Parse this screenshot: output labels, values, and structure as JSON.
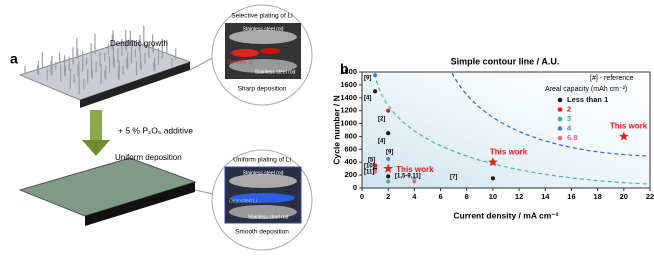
{
  "panel_a": {
    "label": "a",
    "top": {
      "caption": "Dendritic growth",
      "zoom_title": "Selective plating of Li",
      "rod_top": "Stainless steel rod",
      "li_label": "Dendritic Li",
      "rod_bottom": "Stainless steel rod",
      "zoom_caption": "Sharp deposition"
    },
    "additive": "+ 5 % P₂O₅ additive",
    "bottom": {
      "caption": "Uniform deposition",
      "zoom_title": "Uniform plating of Li",
      "rod_top": "Stainless steel rod",
      "li_label": "Deposited Li",
      "rod_bottom": "Stainless steel rod",
      "zoom_caption": "Smooth deposition"
    }
  },
  "chart_data": {
    "type": "scatter",
    "panel_label": "b",
    "title": "Simple contour line / A.U.",
    "x_label": "Current density / mA cm⁻²",
    "y_label": "Cycle number / N",
    "xlim": [
      0,
      22
    ],
    "xticks": [
      0,
      2,
      4,
      6,
      8,
      10,
      12,
      14,
      16,
      18,
      20,
      22
    ],
    "ylim": [
      0,
      1800
    ],
    "yticks": [
      0,
      200,
      400,
      600,
      800,
      1000,
      1200,
      1400,
      1600,
      1800
    ],
    "legend_title": "[#] - reference",
    "legend_subtitle": "Areal capacity (mAh cm⁻²)",
    "series": [
      {
        "name": "Less than 1",
        "color": "#1a1a1a",
        "x": [
          1,
          2,
          1,
          10,
          2
        ],
        "values": [
          1500,
          850,
          300,
          150,
          180
        ]
      },
      {
        "name": "2",
        "color": "#e02020",
        "x": [
          2,
          1
        ],
        "values": [
          1200,
          350
        ]
      },
      {
        "name": "3",
        "color": "#33b877",
        "x": [
          2
        ],
        "values": [
          100
        ]
      },
      {
        "name": "4",
        "color": "#5577cc",
        "x": [
          1,
          2,
          4
        ],
        "values": [
          1750,
          450,
          130
        ]
      },
      {
        "name": "6.8",
        "color": "#e06a8a",
        "x": [
          4,
          1
        ],
        "values": [
          100,
          250
        ]
      }
    ],
    "highlight": {
      "label": "This work",
      "color": "#e02020",
      "x": [
        2,
        10,
        20
      ],
      "values": [
        300,
        400,
        800
      ]
    },
    "references": [
      "[9]",
      "[4]",
      "[2]",
      "[4]",
      "[9]",
      "[5]",
      "[10]",
      "[11]",
      "[1,5-9,11]",
      "[7]"
    ]
  }
}
